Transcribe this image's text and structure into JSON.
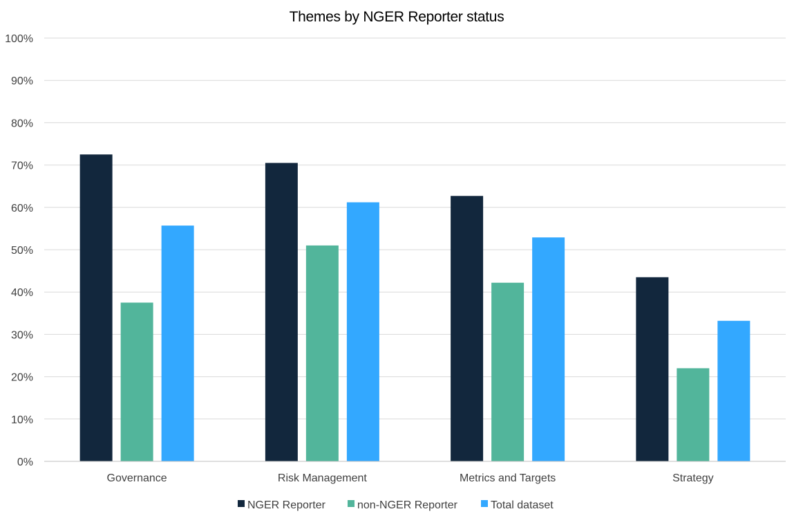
{
  "chart_data": {
    "type": "bar",
    "title": "Themes by NGER Reporter status",
    "xlabel": "",
    "ylabel": "",
    "categories": [
      "Governance",
      "Risk Management",
      "Metrics and Targets",
      "Strategy"
    ],
    "series": [
      {
        "name": "NGER Reporter",
        "color": "#12273d",
        "values": [
          72.5,
          70.5,
          62.7,
          43.5
        ]
      },
      {
        "name": "non-NGER Reporter",
        "color": "#52b59b",
        "values": [
          37.5,
          51.0,
          42.2,
          22.0
        ]
      },
      {
        "name": "Total dataset",
        "color": "#33a8ff",
        "values": [
          55.7,
          61.2,
          52.9,
          33.2
        ]
      }
    ],
    "ylim": [
      0,
      100
    ],
    "yticks": [
      "0%",
      "10%",
      "20%",
      "30%",
      "40%",
      "50%",
      "60%",
      "70%",
      "80%",
      "90%",
      "100%"
    ],
    "grid": true,
    "legend_position": "bottom"
  }
}
